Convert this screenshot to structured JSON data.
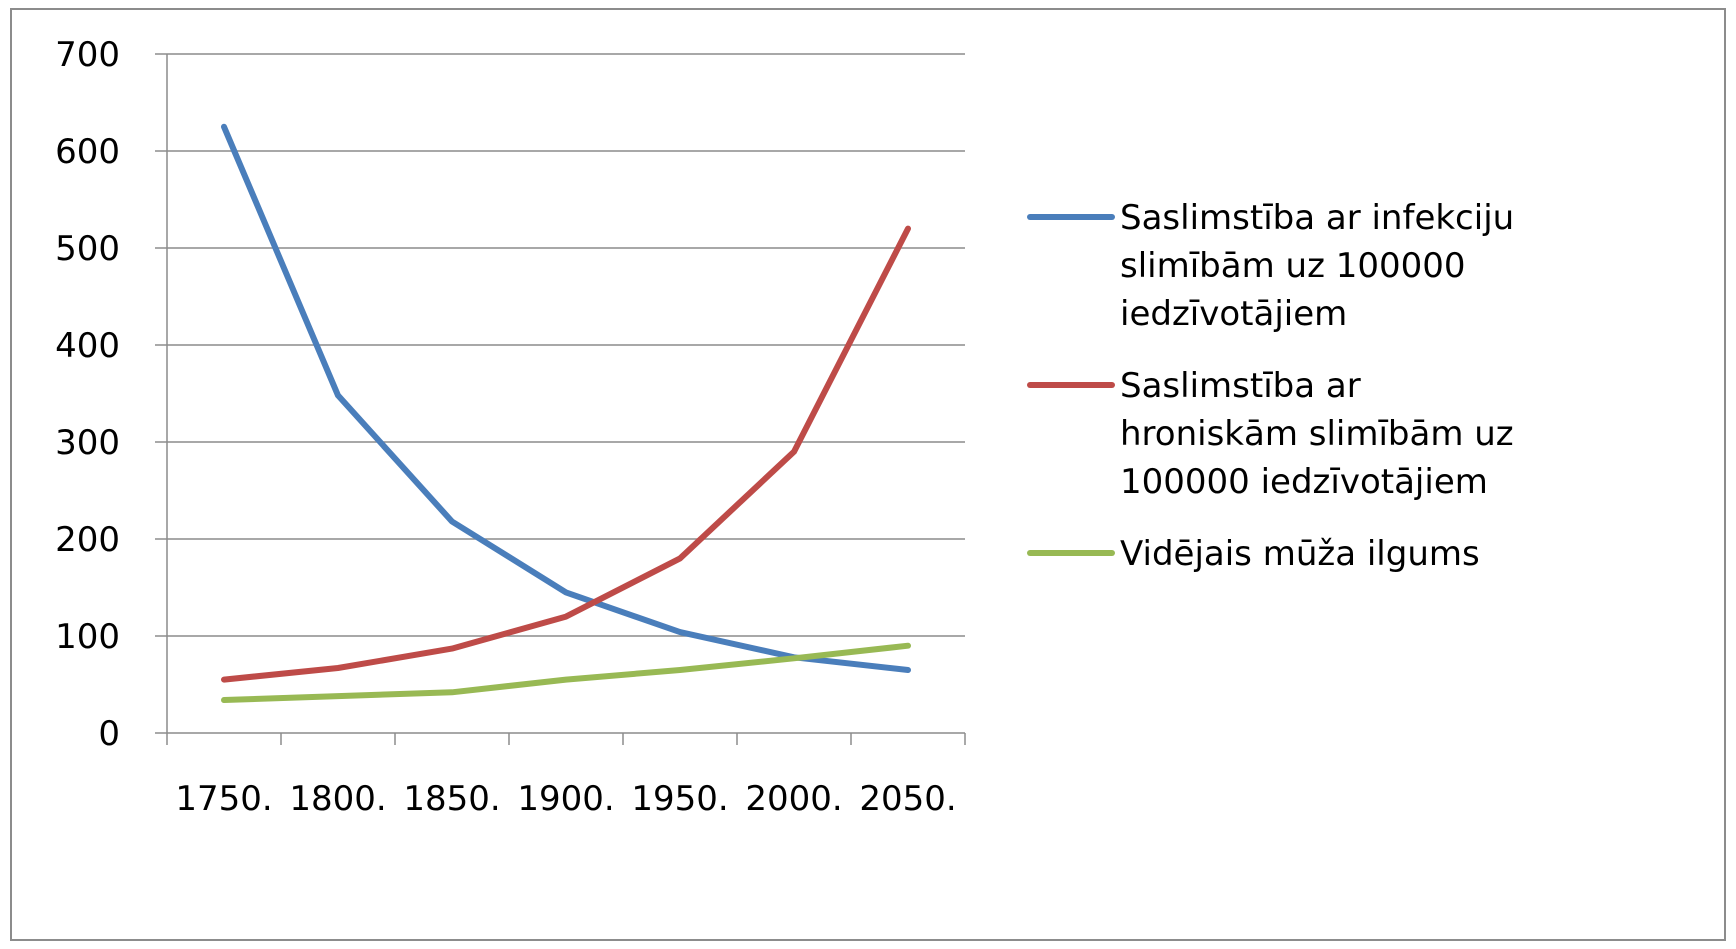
{
  "chart_data": {
    "type": "line",
    "title": "",
    "xlabel": "",
    "ylabel": "",
    "categories": [
      "1750.",
      "1800.",
      "1850.",
      "1900.",
      "1950.",
      "2000.",
      "2050."
    ],
    "y_ticks": [
      "0",
      "100",
      "200",
      "300",
      "400",
      "500",
      "600",
      "700"
    ],
    "ylim": [
      0,
      700
    ],
    "grid": true,
    "legend_position": "right",
    "series": [
      {
        "name": "Saslimstība ar infekciju slimībām uz 100000 iedzīvotājiem",
        "legend_lines": [
          "Saslimstība ar infekciju",
          "slimībām uz 100000",
          "iedzīvotājiem"
        ],
        "color": "#4a7ebb",
        "values": [
          625,
          348,
          218,
          145,
          104,
          78,
          65
        ]
      },
      {
        "name": "Saslimstība ar hroniskām slimībām uz 100000 iedzīvotājiem",
        "legend_lines": [
          "Saslimstība ar",
          "hroniskām slimībām uz",
          "100000 iedzīvotājiem"
        ],
        "color": "#be4b48",
        "values": [
          55,
          67,
          87,
          120,
          180,
          290,
          520
        ]
      },
      {
        "name": "Vidējais mūža ilgums",
        "legend_lines": [
          "Vidējais mūža ilgums"
        ],
        "color": "#98b954",
        "values": [
          34,
          38,
          42,
          55,
          65,
          77,
          90
        ]
      }
    ]
  }
}
